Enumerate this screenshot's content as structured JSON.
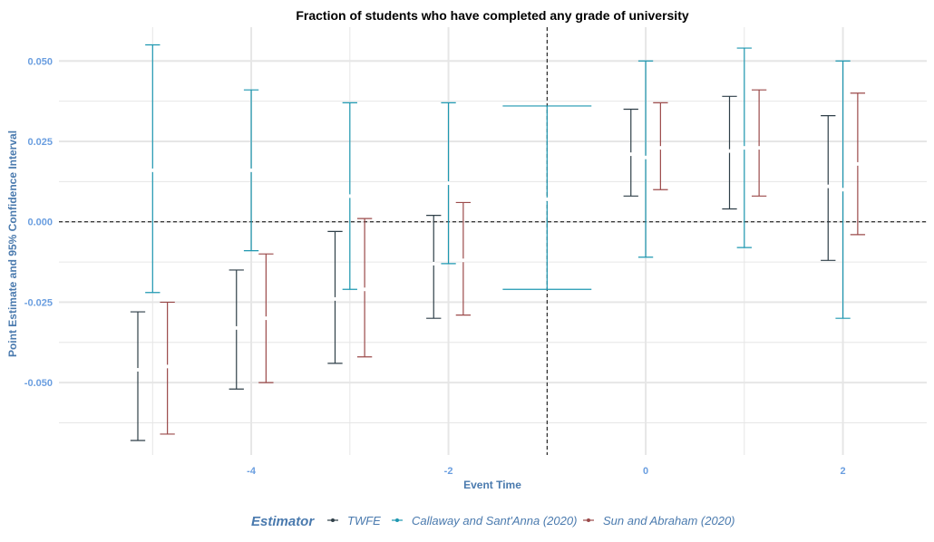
{
  "chart_data": {
    "type": "errorbar",
    "title": "Fraction of students who have completed any grade of university",
    "xlabel": "Event Time",
    "ylabel": "Point Estimate and 95% Confidence Interval",
    "xlim": [
      -5.95,
      2.85
    ],
    "ylim": [
      -0.0725,
      0.0605
    ],
    "x_ticks": [
      -4,
      -2,
      0,
      2
    ],
    "y_ticks": [
      0.05,
      0.025,
      0.0,
      -0.025,
      -0.05
    ],
    "y_tick_labels": [
      "0.050",
      "0.025",
      "0.000",
      "-0.025",
      "-0.050"
    ],
    "x_tick_labels": [
      "-4",
      "-2",
      "0",
      "2"
    ],
    "reference_lines": {
      "x": -1,
      "y": 0
    },
    "grid": true,
    "legend": {
      "title": "Estimator",
      "position": "bottom",
      "items": [
        "TWFE",
        "Callaway and Sant'Anna (2020)",
        "Sun and Abraham (2020)"
      ]
    },
    "series": [
      {
        "name": "TWFE",
        "color": "#2f3f48",
        "offset": -0.15,
        "points": [
          {
            "x": -5,
            "estimate": -0.046,
            "lower": -0.068,
            "upper": -0.028
          },
          {
            "x": -4,
            "estimate": -0.033,
            "lower": -0.052,
            "upper": -0.015
          },
          {
            "x": -3,
            "estimate": -0.024,
            "lower": -0.044,
            "upper": -0.003
          },
          {
            "x": -2,
            "estimate": -0.013,
            "lower": -0.03,
            "upper": 0.002
          },
          {
            "x": 0,
            "estimate": 0.021,
            "lower": 0.008,
            "upper": 0.035
          },
          {
            "x": 1,
            "estimate": 0.022,
            "lower": 0.004,
            "upper": 0.039
          },
          {
            "x": 2,
            "estimate": 0.011,
            "lower": -0.012,
            "upper": 0.033
          }
        ]
      },
      {
        "name": "Callaway and Sant'Anna (2020)",
        "color": "#1d97b0",
        "offset": 0.0,
        "points": [
          {
            "x": -5,
            "estimate": 0.016,
            "lower": -0.022,
            "upper": 0.055
          },
          {
            "x": -4,
            "estimate": 0.016,
            "lower": -0.009,
            "upper": 0.041
          },
          {
            "x": -3,
            "estimate": 0.008,
            "lower": -0.021,
            "upper": 0.037
          },
          {
            "x": -2,
            "estimate": 0.012,
            "lower": -0.013,
            "upper": 0.037
          },
          {
            "x": -1,
            "estimate": 0.007,
            "lower": -0.021,
            "upper": 0.036
          },
          {
            "x": 0,
            "estimate": 0.02,
            "lower": -0.011,
            "upper": 0.05
          },
          {
            "x": 1,
            "estimate": 0.023,
            "lower": -0.008,
            "upper": 0.054
          },
          {
            "x": 2,
            "estimate": 0.01,
            "lower": -0.03,
            "upper": 0.05
          }
        ]
      },
      {
        "name": "Sun and Abraham (2020)",
        "color": "#9b4a4a",
        "offset": 0.15,
        "points": [
          {
            "x": -5,
            "estimate": -0.045,
            "lower": -0.066,
            "upper": -0.025
          },
          {
            "x": -4,
            "estimate": -0.03,
            "lower": -0.05,
            "upper": -0.01
          },
          {
            "x": -3,
            "estimate": -0.021,
            "lower": -0.042,
            "upper": 0.001
          },
          {
            "x": -2,
            "estimate": -0.012,
            "lower": -0.029,
            "upper": 0.006
          },
          {
            "x": 0,
            "estimate": 0.023,
            "lower": 0.01,
            "upper": 0.037
          },
          {
            "x": 1,
            "estimate": 0.023,
            "lower": 0.008,
            "upper": 0.041
          },
          {
            "x": 2,
            "estimate": 0.018,
            "lower": -0.004,
            "upper": 0.04
          }
        ]
      }
    ]
  },
  "style": {
    "tick_color": "#6a9ee0",
    "axis_label_color": "#4a7aae",
    "legend_title_color": "#4a7aae",
    "legend_text_color": "#4a7aae",
    "grid_color": "#e6e6e6"
  }
}
